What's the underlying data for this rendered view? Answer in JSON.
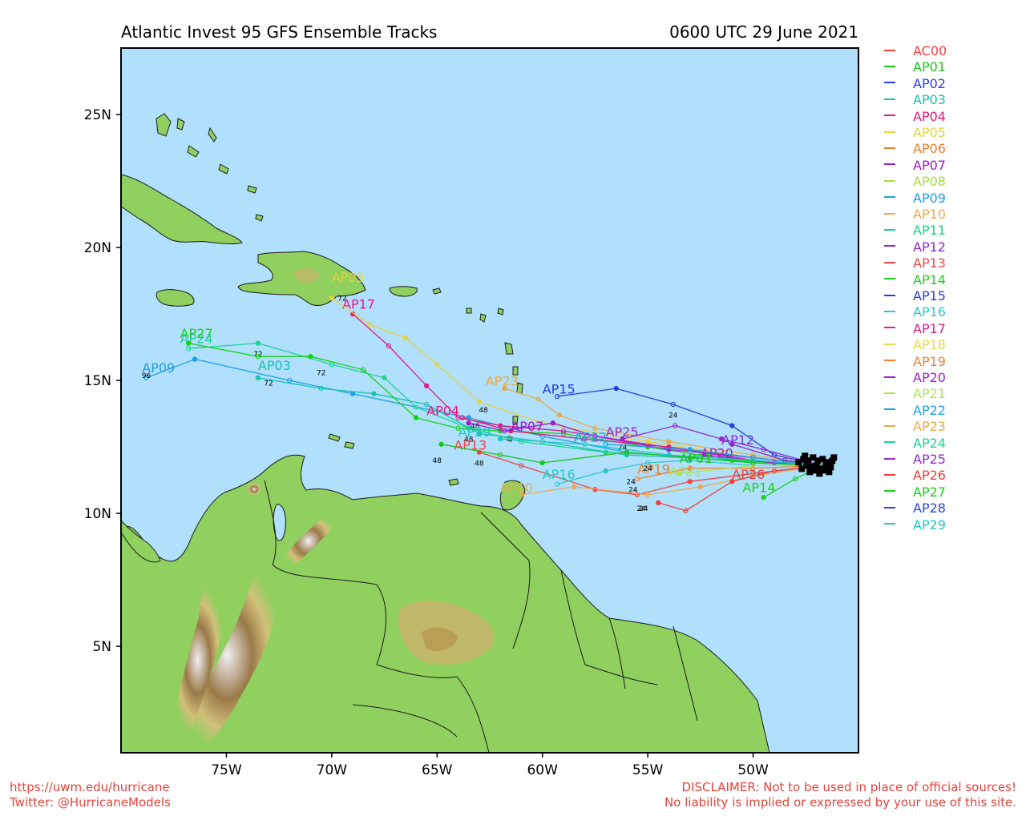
{
  "title": "Atlantic Invest 95 GFS Ensemble Tracks",
  "valid_time": "0600 UTC 29 June 2021",
  "footer": {
    "url": "https://uwm.edu/hurricane",
    "twitter": "Twitter: @HurricaneModels",
    "disclaimer_1": "DISCLAIMER: Not to be used in place of official sources!",
    "disclaimer_2": "No liability is implied or expressed by your use of this site."
  },
  "axes": {
    "lon_ticks": [
      {
        "value": -75,
        "label": "75W"
      },
      {
        "value": -70,
        "label": "70W"
      },
      {
        "value": -65,
        "label": "65W"
      },
      {
        "value": -60,
        "label": "60W"
      },
      {
        "value": -55,
        "label": "55W"
      },
      {
        "value": -50,
        "label": "50W"
      }
    ],
    "lat_ticks": [
      {
        "value": 25,
        "label": "25N"
      },
      {
        "value": 20,
        "label": "20N"
      },
      {
        "value": 15,
        "label": "15N"
      },
      {
        "value": 10,
        "label": "10N"
      },
      {
        "value": 5,
        "label": "5N"
      }
    ],
    "lon_range": [
      -80,
      -45
    ],
    "lat_range": [
      1,
      27.5
    ]
  },
  "colors": {
    "ocean": "#b0e0fb",
    "land": "#8fd05e",
    "land_dark": "#6da840",
    "highland": "#c8b46a",
    "mountain": "#8a6a3a"
  },
  "legend": [
    {
      "name": "AC00",
      "color": "#ff4040"
    },
    {
      "name": "AP01",
      "color": "#1ec21e"
    },
    {
      "name": "AP02",
      "color": "#2a3cf0"
    },
    {
      "name": "AP03",
      "color": "#19c2b0"
    },
    {
      "name": "AP04",
      "color": "#e6197a"
    },
    {
      "name": "AP05",
      "color": "#e6d23c"
    },
    {
      "name": "AP06",
      "color": "#f07a28"
    },
    {
      "name": "AP07",
      "color": "#a019d2"
    },
    {
      "name": "AP08",
      "color": "#9ee03c"
    },
    {
      "name": "AP09",
      "color": "#1e9ee6"
    },
    {
      "name": "AP10",
      "color": "#f0a850"
    },
    {
      "name": "AP11",
      "color": "#1ecf8c"
    },
    {
      "name": "AP12",
      "color": "#8c28d2"
    },
    {
      "name": "AP13",
      "color": "#f04646"
    },
    {
      "name": "AP14",
      "color": "#1ed21e"
    },
    {
      "name": "AP15",
      "color": "#283cdc"
    },
    {
      "name": "AP16",
      "color": "#28c8c8"
    },
    {
      "name": "AP17",
      "color": "#dc1e8c"
    },
    {
      "name": "AP18",
      "color": "#e6dc50"
    },
    {
      "name": "AP19",
      "color": "#f08232"
    },
    {
      "name": "AP20",
      "color": "#a01ed2"
    },
    {
      "name": "AP21",
      "color": "#aae650"
    },
    {
      "name": "AP22",
      "color": "#1ea0e6"
    },
    {
      "name": "AP23",
      "color": "#e6aa46"
    },
    {
      "name": "AP24",
      "color": "#1ed296"
    },
    {
      "name": "AP25",
      "color": "#9628c8"
    },
    {
      "name": "AP26",
      "color": "#f03c3c"
    },
    {
      "name": "AP27",
      "color": "#14d214"
    },
    {
      "name": "AP28",
      "color": "#2846e6"
    },
    {
      "name": "AP29",
      "color": "#1ec8c8"
    }
  ],
  "origin": {
    "lon": -46.7,
    "lat": 11.8
  },
  "tracks": [
    {
      "name": "AP09",
      "color": "#1e9ee6",
      "label_pos": [
        -79,
        15.3
      ],
      "points": [
        [
          -46.7,
          11.8
        ],
        [
          -50,
          11.9
        ],
        [
          -56,
          12.3
        ],
        [
          -60,
          12.9
        ],
        [
          -63.5,
          13.6
        ],
        [
          -66,
          14.0
        ],
        [
          -69,
          14.5
        ],
        [
          -72,
          15.0
        ],
        [
          -76.5,
          15.8
        ],
        [
          -78.8,
          15.1
        ]
      ],
      "hours": [
        {
          "at": [
            -78.8,
            15.1
          ],
          "label": "96"
        }
      ]
    },
    {
      "name": "AP03",
      "color": "#19c2b0",
      "label_pos": [
        -73.5,
        15.4
      ],
      "points": [
        [
          -46.7,
          11.8
        ],
        [
          -51,
          12.0
        ],
        [
          -56,
          12.2
        ],
        [
          -60,
          12.7
        ],
        [
          -63,
          13.0
        ],
        [
          -65.5,
          14.1
        ],
        [
          -68,
          14.5
        ],
        [
          -70.5,
          14.7
        ],
        [
          -73.5,
          15.1
        ]
      ],
      "hours": [
        {
          "at": [
            -73,
            14.8
          ],
          "label": "72"
        }
      ]
    },
    {
      "name": "AP24",
      "color": "#1ed296",
      "label_pos": [
        -77.2,
        16.4
      ],
      "points": [
        [
          -46.7,
          11.8
        ],
        [
          -52,
          12.1
        ],
        [
          -57,
          12.3
        ],
        [
          -61,
          12.7
        ],
        [
          -63.5,
          13.2
        ],
        [
          -66,
          14.0
        ],
        [
          -67.5,
          15.1
        ],
        [
          -70,
          15.6
        ],
        [
          -73.5,
          16.4
        ],
        [
          -76.8,
          16.2
        ]
      ],
      "hours": [
        {
          "at": [
            -73.5,
            15.9
          ],
          "label": "72"
        }
      ]
    },
    {
      "name": "AP27",
      "color": "#14d214",
      "label_pos": [
        -77.2,
        16.6
      ],
      "points": [
        [
          -46.7,
          11.8
        ],
        [
          -51,
          12.0
        ],
        [
          -55,
          12.5
        ],
        [
          -59,
          13.0
        ],
        [
          -62,
          13.1
        ],
        [
          -64,
          13.2
        ],
        [
          -66,
          13.6
        ],
        [
          -68.5,
          15.4
        ],
        [
          -71,
          15.9
        ],
        [
          -73.5,
          15.9
        ],
        [
          -76.8,
          16.4
        ]
      ],
      "hours": [
        {
          "at": [
            -70.5,
            15.2
          ],
          "label": "72"
        }
      ]
    },
    {
      "name": "AP17",
      "color": "#dc1e8c",
      "label_pos": [
        -69.5,
        17.7
      ],
      "points": [
        [
          -46.7,
          11.8
        ],
        [
          -50,
          12.0
        ],
        [
          -55,
          12.6
        ],
        [
          -59,
          13.1
        ],
        [
          -62,
          13.3
        ],
        [
          -64,
          13.6
        ],
        [
          -65.5,
          14.8
        ],
        [
          -67.3,
          16.3
        ],
        [
          -69,
          17.5
        ]
      ],
      "hours": [
        {
          "at": [
            -69.5,
            18.0
          ],
          "label": "72"
        }
      ]
    },
    {
      "name": "AP05",
      "color": "#e6d23c",
      "label_pos": [
        -70,
        18.7
      ],
      "points": [
        [
          -46.7,
          11.8
        ],
        [
          -50,
          12.1
        ],
        [
          -55,
          12.7
        ],
        [
          -60,
          13.4
        ],
        [
          -63,
          14.2
        ],
        [
          -65,
          15.6
        ],
        [
          -66.5,
          16.6
        ],
        [
          -68.2,
          17.1
        ],
        [
          -70,
          18.1
        ]
      ],
      "hours": [
        {
          "at": [
            -62.8,
            13.8
          ],
          "label": "48"
        }
      ]
    },
    {
      "name": "AP04",
      "color": "#e6197a",
      "label_pos": [
        -65.5,
        13.7
      ],
      "points": [
        [
          -46.7,
          11.8
        ],
        [
          -50,
          12.1
        ],
        [
          -54,
          12.5
        ],
        [
          -58,
          12.8
        ],
        [
          -61.5,
          13.1
        ],
        [
          -63.8,
          13.6
        ]
      ],
      "hours": [
        {
          "at": [
            -63.2,
            13.2
          ],
          "label": "48"
        }
      ]
    },
    {
      "name": "AP07",
      "color": "#a019d2",
      "label_pos": [
        -61.5,
        13.1
      ],
      "points": [
        [
          -46.7,
          11.8
        ],
        [
          -50,
          12.1
        ],
        [
          -54,
          12.4
        ],
        [
          -57.5,
          12.9
        ],
        [
          -59.5,
          13.4
        ],
        [
          -61.8,
          13.1
        ],
        [
          -63.5,
          13.4
        ]
      ],
      "hours": [
        {
          "at": [
            -63.5,
            12.7
          ],
          "label": "48"
        }
      ]
    },
    {
      "name": "AP13",
      "color": "#f04646",
      "label_pos": [
        -64.2,
        12.4
      ],
      "points": [
        [
          -46.7,
          11.8
        ],
        [
          -50,
          11.5
        ],
        [
          -53,
          11.2
        ],
        [
          -55.5,
          10.7
        ],
        [
          -57.5,
          10.9
        ],
        [
          -61,
          11.8
        ],
        [
          -63,
          12.3
        ]
      ],
      "hours": [
        {
          "at": [
            -63,
            11.8
          ],
          "label": "48"
        }
      ]
    },
    {
      "name": "AP23",
      "color": "#e6aa46",
      "label_pos": [
        -62.7,
        14.8
      ],
      "points": [
        [
          -46.7,
          11.8
        ],
        [
          -50,
          12.2
        ],
        [
          -54,
          12.7
        ],
        [
          -57.5,
          13.2
        ],
        [
          -59.2,
          13.7
        ],
        [
          -60.2,
          14.3
        ],
        [
          -61.8,
          14.7
        ]
      ],
      "hours": []
    },
    {
      "name": "AP15",
      "color": "#283cdc",
      "label_pos": [
        -60,
        14.5
      ],
      "points": [
        [
          -46.7,
          11.8
        ],
        [
          -49,
          12.2
        ],
        [
          -51,
          13.3
        ],
        [
          -53.8,
          14.1
        ],
        [
          -56.5,
          14.7
        ],
        [
          -59.3,
          14.4
        ]
      ],
      "hours": [
        {
          "at": [
            -53.8,
            13.6
          ],
          "label": "24"
        }
      ]
    },
    {
      "name": "AP25",
      "color": "#9628c8",
      "label_pos": [
        -57,
        12.9
      ],
      "points": [
        [
          -46.7,
          11.8
        ],
        [
          -49.5,
          12.4
        ],
        [
          -51.5,
          12.8
        ],
        [
          -53.7,
          13.3
        ],
        [
          -56.2,
          12.8
        ]
      ],
      "hours": [
        {
          "at": [
            -56.2,
            12.4
          ],
          "label": "24"
        }
      ]
    },
    {
      "name": "AP12",
      "color": "#8c28d2",
      "label_pos": [
        -51.5,
        12.6
      ],
      "points": [
        [
          -46.7,
          11.8
        ],
        [
          -48.5,
          12.0
        ],
        [
          -51,
          12.6
        ]
      ],
      "hours": []
    },
    {
      "name": "AP20",
      "color": "#a01ed2",
      "label_pos": [
        -52.5,
        12.1
      ],
      "points": [
        [
          -46.7,
          11.8
        ],
        [
          -49,
          11.9
        ],
        [
          -52.3,
          12.2
        ]
      ],
      "hours": []
    },
    {
      "name": "AP22",
      "color": "#1ea0e6",
      "label_pos": [
        -58.5,
        12.7
      ],
      "points": [
        [
          -46.7,
          11.8
        ],
        [
          -50,
          12.1
        ],
        [
          -53,
          12.4
        ],
        [
          -57,
          12.6
        ]
      ],
      "hours": []
    },
    {
      "name": "AP29",
      "color": "#1ec8c8",
      "label_pos": [
        -64,
        12.9
      ],
      "points": [
        [
          -46.7,
          11.8
        ],
        [
          -50,
          12.0
        ],
        [
          -54,
          12.2
        ],
        [
          -58,
          12.6
        ],
        [
          -62,
          12.8
        ]
      ],
      "hours": []
    },
    {
      "name": "AP16",
      "color": "#28c8c8",
      "label_pos": [
        -60,
        11.3
      ],
      "points": [
        [
          -46.7,
          11.8
        ],
        [
          -50,
          11.8
        ],
        [
          -53,
          12.0
        ],
        [
          -55,
          11.9
        ],
        [
          -57,
          11.6
        ],
        [
          -59.3,
          11.1
        ]
      ],
      "hours": [
        {
          "at": [
            -55.8,
            11.1
          ],
          "label": "24"
        }
      ]
    },
    {
      "name": "AP10",
      "color": "#f0a850",
      "label_pos": [
        -62,
        10.8
      ],
      "points": [
        [
          -46.7,
          11.8
        ],
        [
          -50,
          11.4
        ],
        [
          -52.5,
          11.0
        ],
        [
          -55,
          10.7
        ],
        [
          -58.5,
          11.0
        ],
        [
          -61,
          10.7
        ]
      ],
      "hours": [
        {
          "at": [
            -55.2,
            10.1
          ],
          "label": "24"
        }
      ]
    },
    {
      "name": "AP19",
      "color": "#f08232",
      "label_pos": [
        -55.5,
        11.5
      ],
      "points": [
        [
          -46.7,
          11.8
        ],
        [
          -50,
          11.7
        ],
        [
          -53,
          11.7
        ],
        [
          -55.5,
          11.3
        ]
      ],
      "hours": [
        {
          "at": [
            -55.7,
            10.8
          ],
          "label": "24"
        }
      ]
    },
    {
      "name": "AP21",
      "color": "#aae650",
      "label_pos": [
        -54,
        11.4
      ],
      "points": [
        [
          -46.7,
          11.8
        ],
        [
          -50,
          11.8
        ],
        [
          -53.5,
          11.5
        ]
      ],
      "hours": [
        {
          "at": [
            -55,
            11.6
          ],
          "label": "24"
        }
      ]
    },
    {
      "name": "AP14",
      "color": "#1ed21e",
      "label_pos": [
        -50.5,
        10.8
      ],
      "points": [
        [
          -46.7,
          11.8
        ],
        [
          -48,
          11.3
        ],
        [
          -49.5,
          10.6
        ]
      ],
      "hours": []
    },
    {
      "name": "AP26",
      "color": "#f03c3c",
      "label_pos": [
        -51,
        11.3
      ],
      "points": [
        [
          -46.7,
          11.8
        ],
        [
          -49,
          11.6
        ],
        [
          -51,
          11.2
        ],
        [
          -53.2,
          10.1
        ],
        [
          -54.5,
          10.4
        ]
      ],
      "hours": [
        {
          "at": [
            -55.3,
            10.1
          ],
          "label": "24"
        }
      ]
    },
    {
      "name": "AP01",
      "color": "#1ec21e",
      "label_pos": [
        -53.5,
        11.9
      ],
      "points": [
        [
          -46.7,
          11.8
        ],
        [
          -50,
          11.9
        ],
        [
          -53,
          12.1
        ],
        [
          -56,
          12.3
        ],
        [
          -60,
          11.9
        ],
        [
          -62,
          12.2
        ],
        [
          -64.8,
          12.6
        ]
      ],
      "hours": [
        {
          "at": [
            -65,
            11.9
          ],
          "label": "48"
        }
      ]
    }
  ],
  "land_features": [
    {
      "name": "Cuba"
    },
    {
      "name": "Hispaniola"
    },
    {
      "name": "Jamaica"
    },
    {
      "name": "Puerto Rico"
    },
    {
      "name": "South America"
    }
  ]
}
